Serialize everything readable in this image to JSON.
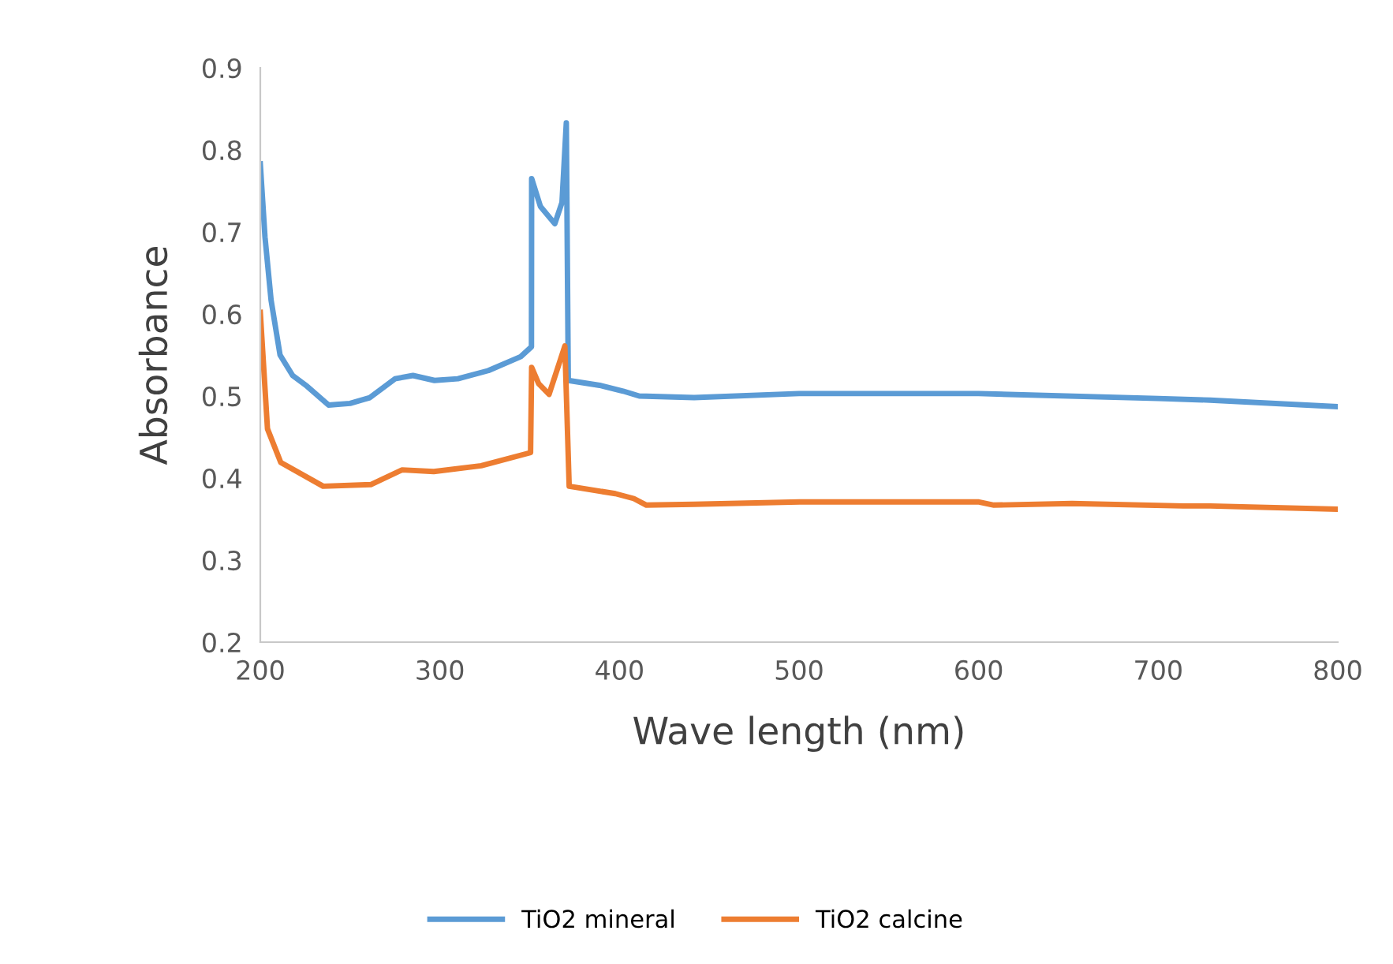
{
  "chart_data": {
    "type": "line",
    "xlabel": "Wave length (nm)",
    "ylabel": "Absorbance",
    "xlim": [
      200,
      800
    ],
    "xticks": [
      200,
      300,
      400,
      500,
      600,
      700,
      800
    ],
    "ylim": [
      0.2,
      0.9
    ],
    "yticks": [
      0.2,
      0.3,
      0.4,
      0.5,
      0.6,
      0.7,
      0.8,
      0.9
    ],
    "grid": false,
    "legend": "bottom",
    "marker": "none",
    "line_style": "solid",
    "series": [
      {
        "name": "TiO2 mineral",
        "color": "#5b9bd5",
        "x": [
          200,
          202.6,
          206,
          211,
          218,
          226,
          238,
          250,
          261,
          275,
          285,
          297,
          310,
          327,
          345,
          351,
          351.1,
          356,
          364,
          368,
          370.4,
          371.5,
          389,
          402,
          411,
          441.6,
          500,
          600,
          700,
          729,
          800
        ],
        "values": [
          0.783,
          0.694,
          0.617,
          0.55,
          0.525,
          0.512,
          0.489,
          0.491,
          0.498,
          0.521,
          0.525,
          0.519,
          0.521,
          0.531,
          0.548,
          0.56,
          0.765,
          0.731,
          0.71,
          0.736,
          0.833,
          0.519,
          0.513,
          0.506,
          0.5,
          0.498,
          0.503,
          0.503,
          0.497,
          0.495,
          0.487
        ]
      },
      {
        "name": "TiO2 calcine",
        "color": "#ed7d31",
        "x": [
          200,
          204,
          211.4,
          235,
          261.5,
          279,
          296.6,
          323,
          350.5,
          351.1,
          355,
          360.8,
          369.6,
          372,
          397.7,
          408,
          415,
          441.6,
          500.4,
          599.7,
          608.5,
          652,
          714,
          729,
          800
        ],
        "values": [
          0.602,
          0.46,
          0.419,
          0.39,
          0.392,
          0.41,
          0.408,
          0.415,
          0.431,
          0.535,
          0.515,
          0.502,
          0.561,
          0.39,
          0.381,
          0.375,
          0.367,
          0.368,
          0.371,
          0.371,
          0.367,
          0.369,
          0.366,
          0.366,
          0.362
        ]
      }
    ]
  }
}
